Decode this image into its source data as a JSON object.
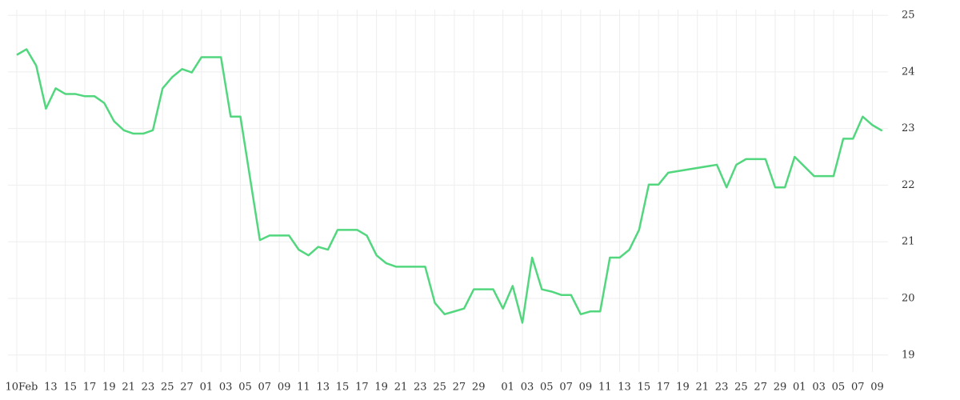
{
  "chart_data": {
    "type": "line",
    "x": [
      0,
      1,
      2,
      3,
      4,
      5,
      6,
      7,
      8,
      9,
      10,
      11,
      12,
      13,
      14,
      15,
      16,
      17,
      18,
      19,
      20,
      21,
      22,
      23,
      25,
      26,
      27,
      28,
      29,
      30,
      31,
      32,
      33,
      34,
      35,
      36,
      37,
      38,
      39,
      40,
      41,
      42,
      43,
      44,
      45,
      46,
      47,
      48,
      49,
      50,
      51,
      52,
      53,
      54,
      55,
      56,
      57,
      58,
      59,
      60,
      61,
      62,
      63,
      64,
      65,
      66,
      67,
      72,
      73,
      74,
      75,
      76,
      77,
      78,
      79,
      80,
      82,
      83,
      84,
      85,
      86,
      87,
      88,
      89
    ],
    "series": [
      {
        "color": "#52d67e",
        "values": [
          24.3,
          24.4,
          24.11,
          23.35,
          23.71,
          23.61,
          23.61,
          23.57,
          23.57,
          23.45,
          23.13,
          22.97,
          22.91,
          22.91,
          22.97,
          23.71,
          23.91,
          24.05,
          23.99,
          24.26,
          24.26,
          24.26,
          23.21,
          23.21,
          21.03,
          21.11,
          21.11,
          21.11,
          20.86,
          20.76,
          20.91,
          20.86,
          21.21,
          21.21,
          21.21,
          21.11,
          20.76,
          20.62,
          20.56,
          20.56,
          20.56,
          20.56,
          19.92,
          19.72,
          19.77,
          19.82,
          20.16,
          20.16,
          20.16,
          19.82,
          20.22,
          19.57,
          20.72,
          20.16,
          20.12,
          20.06,
          20.06,
          19.72,
          19.77,
          19.77,
          20.72,
          20.72,
          20.86,
          21.21,
          22.01,
          22.01,
          22.22,
          22.36,
          21.96,
          22.36,
          22.46,
          22.46,
          22.46,
          21.96,
          21.96,
          22.5,
          22.16,
          22.16,
          22.16,
          22.82,
          22.82,
          23.21,
          23.06,
          22.96
        ]
      }
    ],
    "xlim": [
      -0.9,
      89.6
    ],
    "xticks": [
      {
        "value": 0,
        "label": "10Feb"
      },
      {
        "value": 3,
        "label": "13"
      },
      {
        "value": 5,
        "label": "15"
      },
      {
        "value": 7,
        "label": "17"
      },
      {
        "value": 9,
        "label": "19"
      },
      {
        "value": 11,
        "label": "21"
      },
      {
        "value": 13,
        "label": "23"
      },
      {
        "value": 15,
        "label": "25"
      },
      {
        "value": 17,
        "label": "27"
      },
      {
        "value": 19,
        "label": "01"
      },
      {
        "value": 21,
        "label": "03"
      },
      {
        "value": 23,
        "label": "05"
      },
      {
        "value": 25,
        "label": "07"
      },
      {
        "value": 27,
        "label": "09"
      },
      {
        "value": 29,
        "label": "11"
      },
      {
        "value": 31,
        "label": "13"
      },
      {
        "value": 33,
        "label": "15"
      },
      {
        "value": 35,
        "label": "17"
      },
      {
        "value": 37,
        "label": "19"
      },
      {
        "value": 39,
        "label": "21"
      },
      {
        "value": 41,
        "label": "23"
      },
      {
        "value": 43,
        "label": "25"
      },
      {
        "value": 45,
        "label": "27"
      },
      {
        "value": 47,
        "label": "29"
      },
      {
        "value": 50,
        "label": "01"
      },
      {
        "value": 52,
        "label": "03"
      },
      {
        "value": 54,
        "label": "05"
      },
      {
        "value": 56,
        "label": "07"
      },
      {
        "value": 58,
        "label": "09"
      },
      {
        "value": 60,
        "label": "11"
      },
      {
        "value": 62,
        "label": "13"
      },
      {
        "value": 64,
        "label": "15"
      },
      {
        "value": 66,
        "label": "17"
      },
      {
        "value": 68,
        "label": "19"
      },
      {
        "value": 70,
        "label": "21"
      },
      {
        "value": 72,
        "label": "23"
      },
      {
        "value": 74,
        "label": "25"
      },
      {
        "value": 76,
        "label": "27"
      },
      {
        "value": 78,
        "label": "29"
      },
      {
        "value": 80,
        "label": "01"
      },
      {
        "value": 82,
        "label": "03"
      },
      {
        "value": 84,
        "label": "05"
      },
      {
        "value": 86,
        "label": "07"
      },
      {
        "value": 88,
        "label": "09"
      }
    ],
    "ylim": [
      18.7,
      25.1
    ],
    "yticks": [
      19,
      20,
      21,
      22,
      23,
      24,
      25
    ],
    "grid": true
  }
}
